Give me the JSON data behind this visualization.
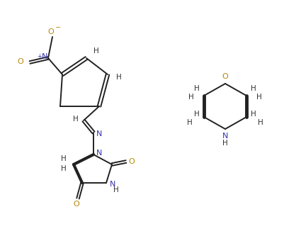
{
  "bg_color": "#ffffff",
  "line_color": "#222222",
  "atom_colors": {
    "O": "#b8860b",
    "N": "#3333aa",
    "H": "#333333",
    "C": "#222222"
  },
  "figsize": [
    4.01,
    3.4
  ],
  "dpi": 100
}
